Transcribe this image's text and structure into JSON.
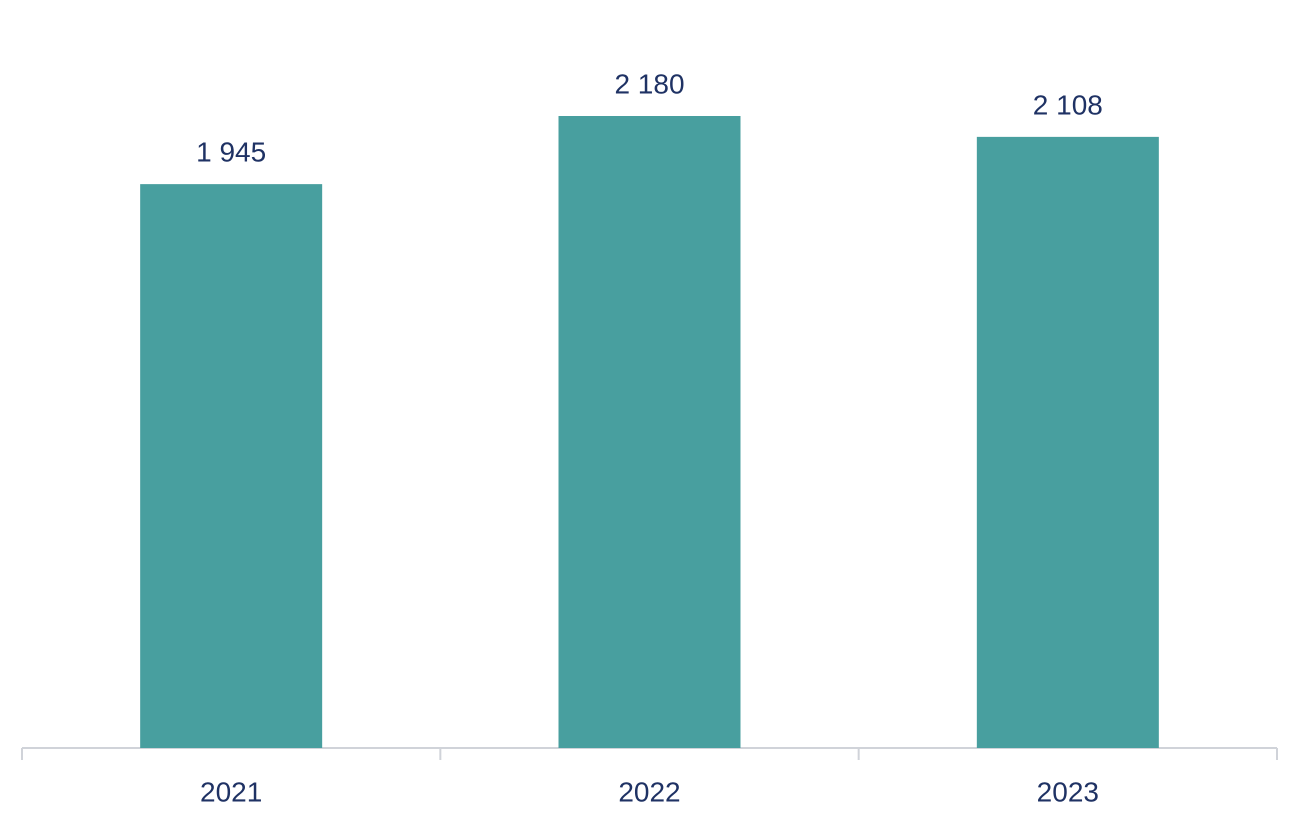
{
  "chart_data": {
    "type": "bar",
    "categories": [
      "2021",
      "2022",
      "2023"
    ],
    "values": [
      1945,
      2180,
      2108
    ],
    "value_labels": [
      "1 945",
      "2 180",
      "2 108"
    ],
    "color": "#489f9f"
  }
}
